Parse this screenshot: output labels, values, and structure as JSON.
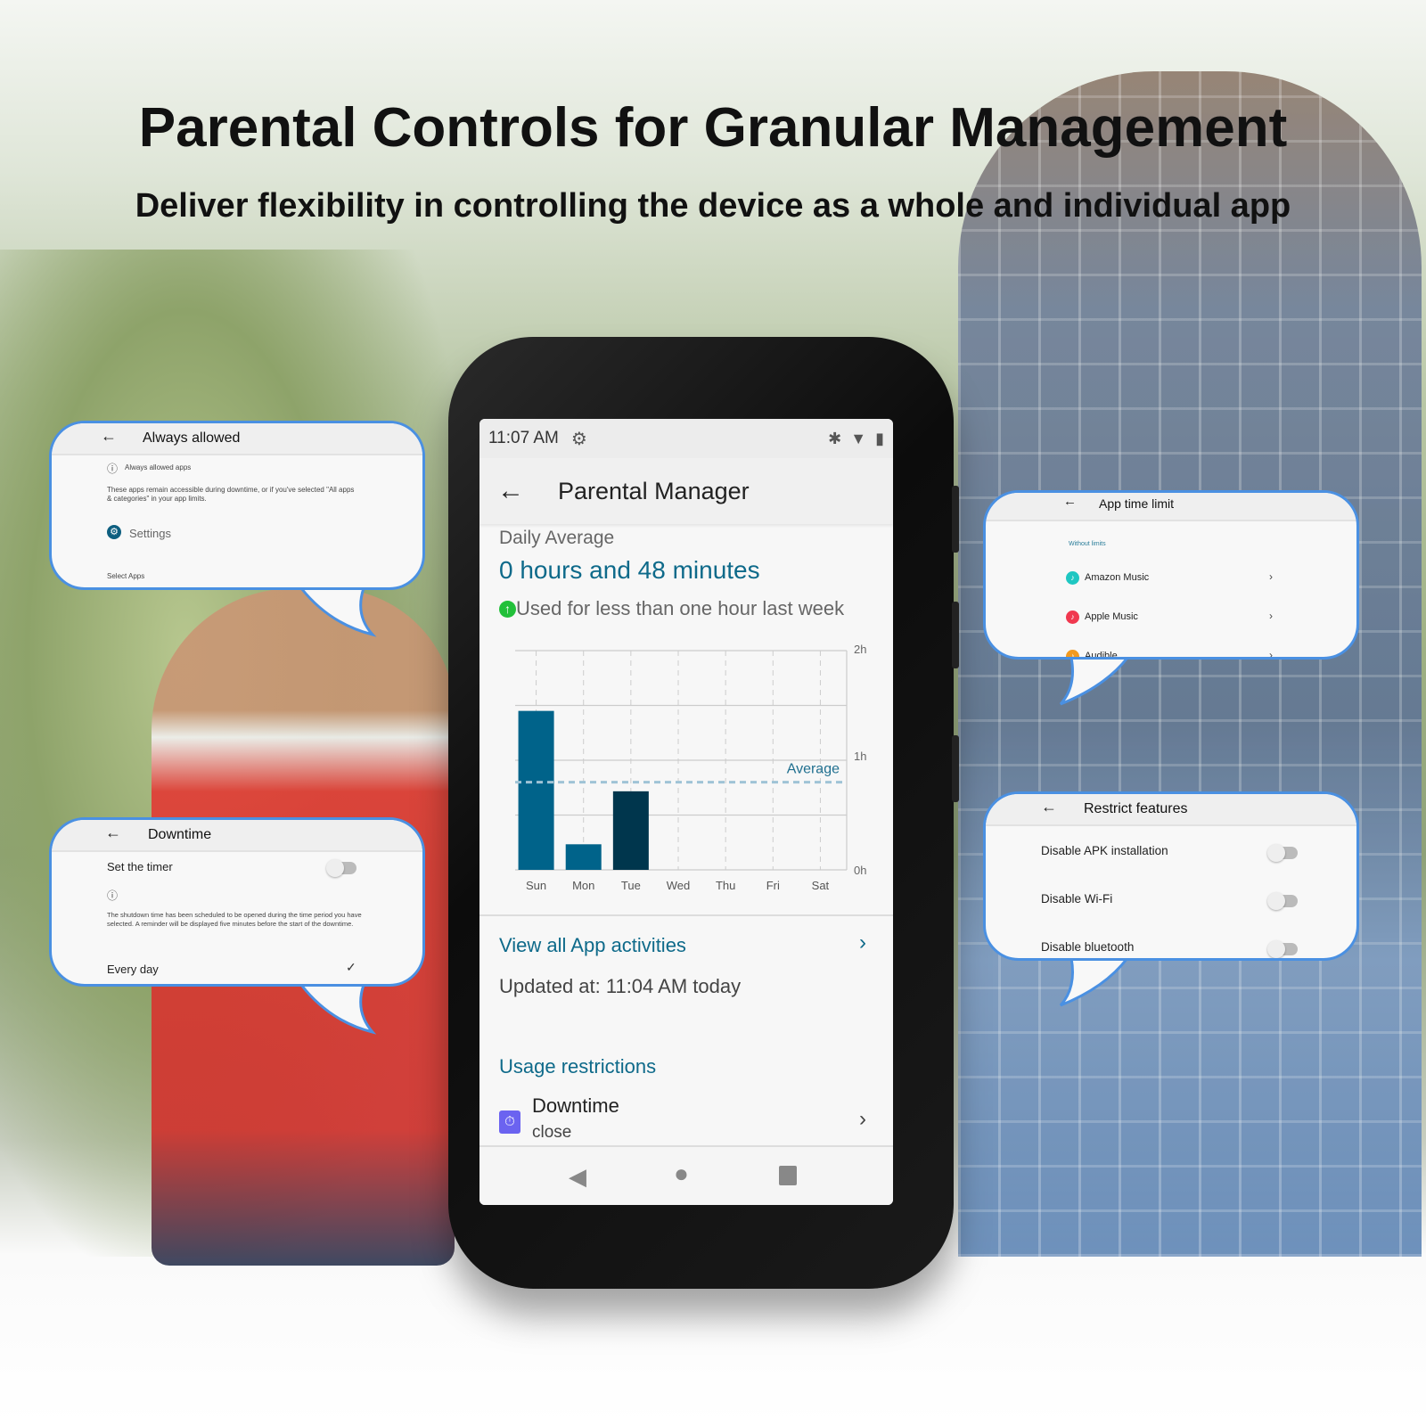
{
  "headline": "Parental Controls for Granular Management",
  "subheadline": "Deliver flexibility in controlling the device as a whole and individual app",
  "phone": {
    "status": {
      "time": "11:07 AM",
      "icons": [
        "gear-icon",
        "bluetooth-icon",
        "wifi-icon",
        "battery-icon"
      ]
    },
    "title": "Parental Manager",
    "daily_average_label": "Daily Average",
    "daily_average_value": "0 hours and 48 minutes",
    "usage_note": "Used for less than one hour last week",
    "view_all": "View all App activities",
    "updated": "Updated at: 11:04 AM today",
    "usage_restrictions": "Usage restrictions",
    "downtime_item": {
      "title": "Downtime",
      "status": "close"
    },
    "accent_color": "#0e6a8a"
  },
  "chart_data": {
    "type": "bar",
    "categories": [
      "Sun",
      "Mon",
      "Tue",
      "Wed",
      "Thu",
      "Fri",
      "Sat"
    ],
    "values_minutes": [
      87,
      14,
      43,
      0,
      0,
      0,
      0
    ],
    "average_minutes": 48,
    "average_label": "Average",
    "y_ticks": [
      "0h",
      "1h",
      "2h"
    ],
    "ylim_hours": [
      0,
      2
    ],
    "highlight_index": 2,
    "colors": {
      "bar": "#00638a",
      "highlight": "#00364d",
      "average": "#9fc3d6"
    }
  },
  "bubbles": {
    "always_allowed": {
      "title": "Always allowed",
      "info": "Always allowed apps",
      "desc": "These apps remain accessible during downtime, or if you've selected \"All apps & categories\" in your app limits.",
      "settings": "Settings",
      "select_apps": "Select Apps"
    },
    "downtime": {
      "title": "Downtime",
      "set_timer": "Set the timer",
      "timer_on": false,
      "desc": "The shutdown time has been scheduled to be opened during the time period you have selected. A reminder will be displayed five minutes before the start of the downtime.",
      "every_day": "Every day",
      "every_day_checked": true
    },
    "app_time_limit": {
      "title": "App time limit",
      "section": "Without limits",
      "apps": [
        {
          "name": "Amazon Music",
          "color": "#1fc7c2"
        },
        {
          "name": "Apple Music",
          "color": "#f0384f"
        },
        {
          "name": "Audible",
          "color": "#f39a1f"
        }
      ]
    },
    "restrict_features": {
      "title": "Restrict features",
      "items": [
        {
          "label": "Disable APK installation",
          "on": false
        },
        {
          "label": "Disable Wi-Fi",
          "on": false
        },
        {
          "label": "Disable bluetooth",
          "on": false
        }
      ]
    }
  }
}
